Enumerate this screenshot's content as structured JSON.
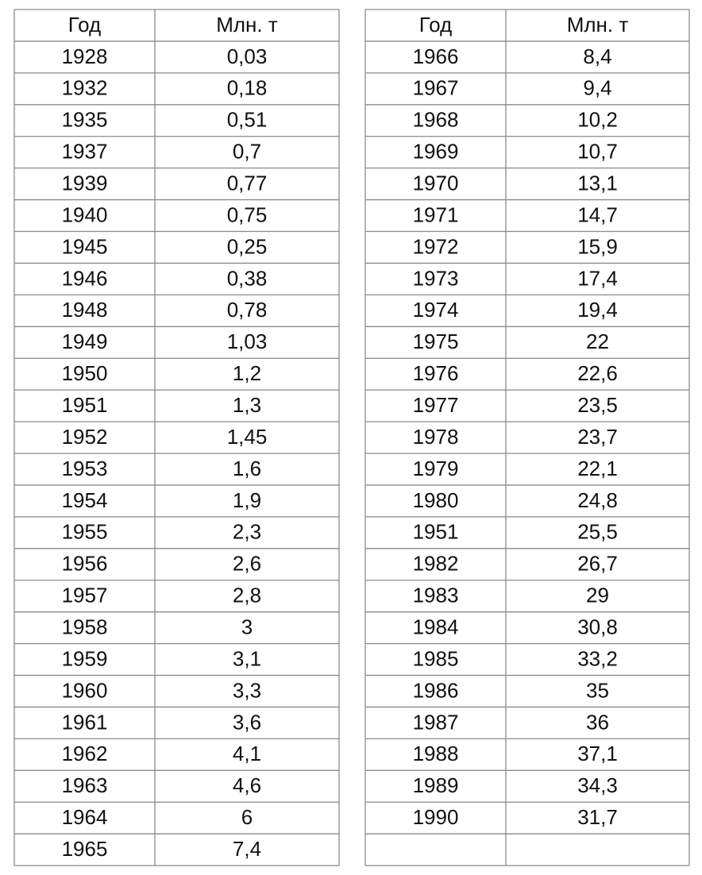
{
  "left": {
    "header": [
      "Год",
      "Млн. т"
    ],
    "rows": [
      [
        "1928",
        "0,03"
      ],
      [
        "1932",
        "0,18"
      ],
      [
        "1935",
        "0,51"
      ],
      [
        "1937",
        "0,7"
      ],
      [
        "1939",
        "0,77"
      ],
      [
        "1940",
        "0,75"
      ],
      [
        "1945",
        "0,25"
      ],
      [
        "1946",
        "0,38"
      ],
      [
        "1948",
        "0,78"
      ],
      [
        "1949",
        "1,03"
      ],
      [
        "1950",
        "1,2"
      ],
      [
        "1951",
        "1,3"
      ],
      [
        "1952",
        "1,45"
      ],
      [
        "1953",
        "1,6"
      ],
      [
        "1954",
        "1,9"
      ],
      [
        "1955",
        "2,3"
      ],
      [
        "1956",
        "2,6"
      ],
      [
        "1957",
        "2,8"
      ],
      [
        "1958",
        "3"
      ],
      [
        "1959",
        "3,1"
      ],
      [
        "1960",
        "3,3"
      ],
      [
        "1961",
        "3,6"
      ],
      [
        "1962",
        "4,1"
      ],
      [
        "1963",
        "4,6"
      ],
      [
        "1964",
        "6"
      ],
      [
        "1965",
        "7,4"
      ]
    ]
  },
  "right": {
    "header": [
      "Год",
      "Млн. т"
    ],
    "rows": [
      [
        "1966",
        "8,4"
      ],
      [
        "1967",
        "9,4"
      ],
      [
        "1968",
        "10,2"
      ],
      [
        "1969",
        "10,7"
      ],
      [
        "1970",
        "13,1"
      ],
      [
        "1971",
        "14,7"
      ],
      [
        "1972",
        "15,9"
      ],
      [
        "1973",
        "17,4"
      ],
      [
        "1974",
        "19,4"
      ],
      [
        "1975",
        "22"
      ],
      [
        "1976",
        "22,6"
      ],
      [
        "1977",
        "23,5"
      ],
      [
        "1978",
        "23,7"
      ],
      [
        "1979",
        "22,1"
      ],
      [
        "1980",
        "24,8"
      ],
      [
        "1951",
        "25,5"
      ],
      [
        "1982",
        "26,7"
      ],
      [
        "1983",
        "29"
      ],
      [
        "1984",
        "30,8"
      ],
      [
        "1985",
        "33,2"
      ],
      [
        "1986",
        "35"
      ],
      [
        "1987",
        "36"
      ],
      [
        "1988",
        "37,1"
      ],
      [
        "1989",
        "34,3"
      ],
      [
        "1990",
        "31,7"
      ]
    ]
  }
}
